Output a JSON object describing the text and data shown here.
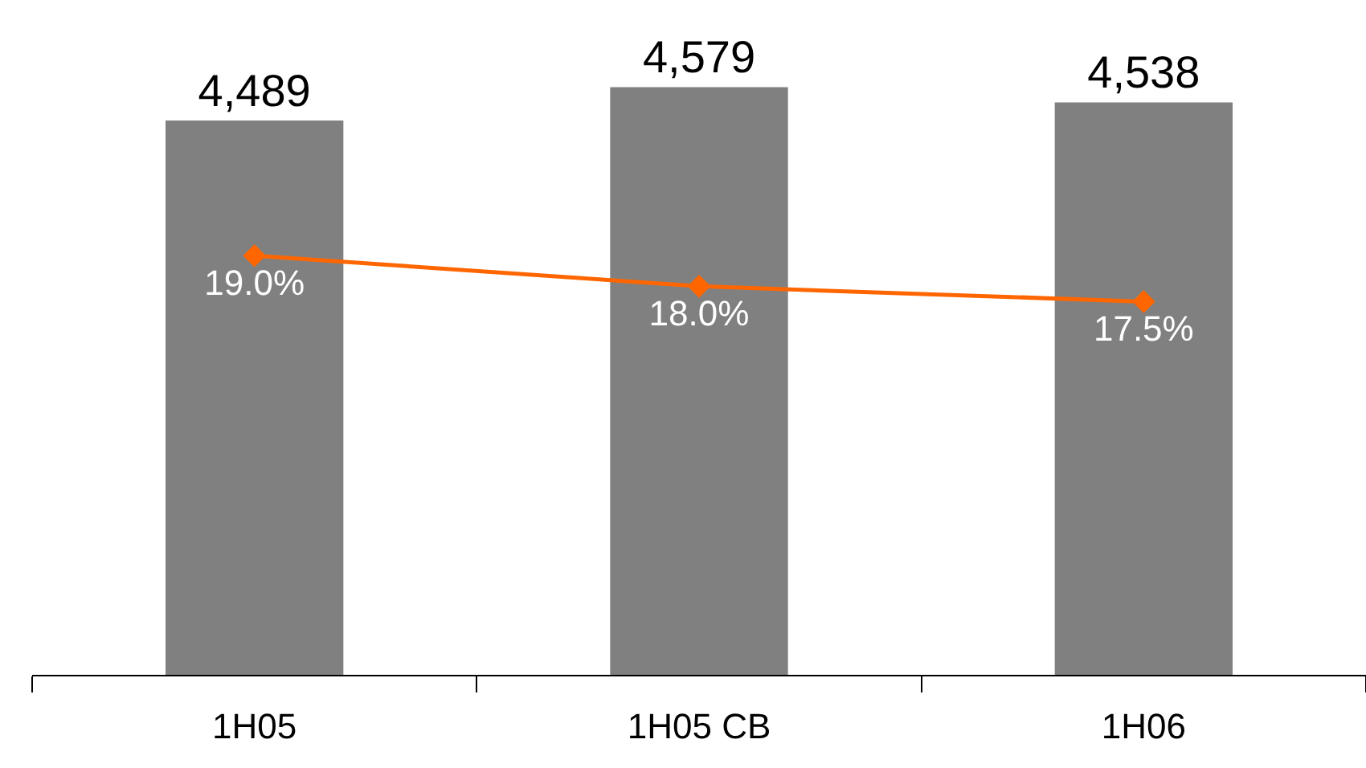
{
  "chart_data": {
    "type": "bar",
    "categories": [
      "1H05",
      "1H05 CB",
      "1H06"
    ],
    "ylim": [
      3000,
      4800
    ],
    "y2lim": [
      5.3,
      27.2
    ],
    "tick_labels": "x",
    "grid": false,
    "legend": false,
    "series": [
      {
        "color": "#808080",
        "values": [
          4489,
          4579,
          4538
        ],
        "value_labels": [
          "4,489",
          "4,579",
          "4,538"
        ]
      },
      {
        "type": "line",
        "axis": "y2",
        "color": "#ff6600",
        "marker": "diamond",
        "line_style": "solid",
        "values": [
          19.0,
          18.0,
          17.5
        ],
        "value_labels": [
          "19.0%",
          "18.0%",
          "17.5%"
        ]
      }
    ]
  }
}
